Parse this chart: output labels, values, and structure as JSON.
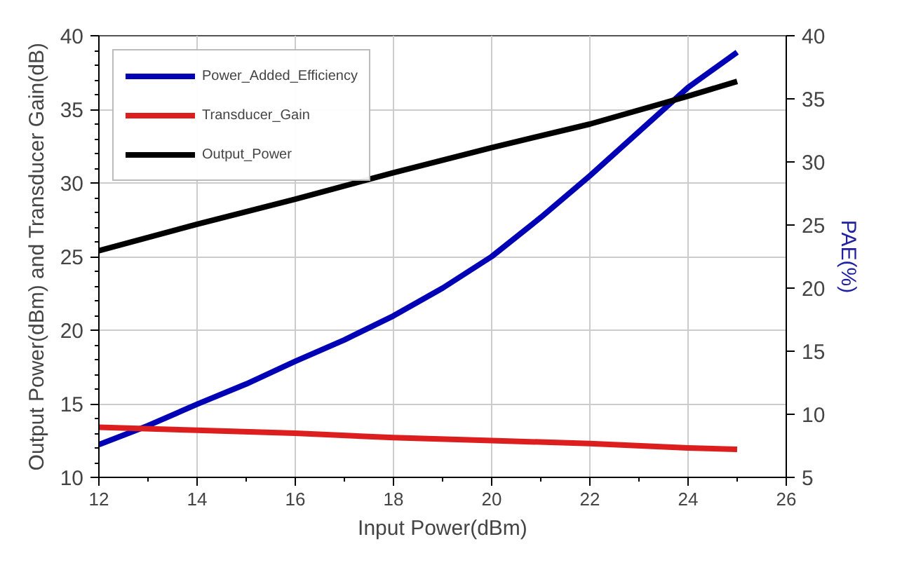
{
  "chart_data": {
    "type": "line",
    "xlabel": "Input Power(dBm)",
    "ylabel": "Output Power(dBm) and Transducer Gain(dB)",
    "y2label": "PAE(%)",
    "xlim": [
      12,
      26
    ],
    "xticks": [
      12,
      14,
      16,
      18,
      20,
      22,
      24,
      26
    ],
    "ylim": [
      10,
      40
    ],
    "yticks": [
      10,
      15,
      20,
      25,
      30,
      35,
      40
    ],
    "y2lim": [
      5,
      40
    ],
    "y2ticks": [
      5,
      10,
      15,
      20,
      25,
      30,
      35,
      40
    ],
    "grid": true,
    "legend": "top left",
    "line_style": "solid",
    "marker": "none",
    "series": [
      {
        "name": "Power_Added_Efficiency",
        "color": "#0000b4",
        "axis": "y2",
        "x": [
          12,
          13,
          14,
          15,
          16,
          17,
          18,
          19,
          20,
          21,
          22,
          23,
          24,
          25
        ],
        "values": [
          7.6,
          9.1,
          10.8,
          12.4,
          14.2,
          15.9,
          17.8,
          20.0,
          22.5,
          25.6,
          28.9,
          32.4,
          35.9,
          38.7
        ]
      },
      {
        "name": "Transducer_Gain",
        "color": "#dc1e1e",
        "x": [
          12,
          14,
          16,
          18,
          20,
          22,
          24,
          25
        ],
        "values": [
          13.4,
          13.2,
          13.0,
          12.7,
          12.5,
          12.3,
          12.0,
          11.9
        ]
      },
      {
        "name": "Output_Power",
        "color": "#000000",
        "x": [
          12,
          14,
          16,
          18,
          20,
          22,
          24,
          25
        ],
        "values": [
          25.4,
          27.2,
          28.9,
          30.7,
          32.4,
          34.0,
          35.9,
          36.9
        ]
      }
    ]
  }
}
